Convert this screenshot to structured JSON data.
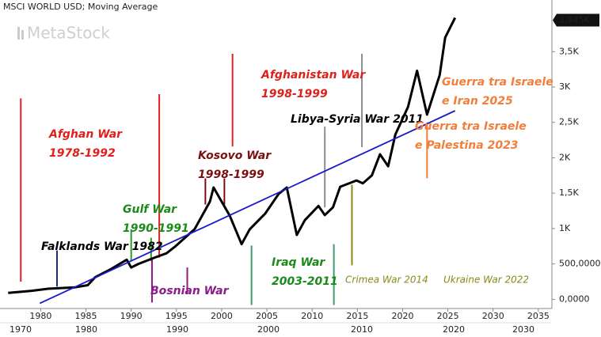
{
  "chart_data": {
    "type": "line",
    "title": "MSCI WORLD USD; Moving Average",
    "watermark": "MetaStock",
    "xlim": [
      1975.5,
      2036.5
    ],
    "ylim": [
      -130,
      4230
    ],
    "xticks": [
      1980,
      1985,
      1990,
      1995,
      2000,
      2005,
      2010,
      2015,
      2020,
      2025,
      2030,
      2035
    ],
    "x_period_labels": [
      "1970",
      "1980",
      "1990",
      "2000",
      "2010",
      "2020",
      "2030"
    ],
    "yticks": [
      {
        "value": 0,
        "label": "0,0000"
      },
      {
        "value": 500,
        "label": "500,0000"
      },
      {
        "value": 1000,
        "label": "1K"
      },
      {
        "value": 1500,
        "label": "1,5K"
      },
      {
        "value": 2000,
        "label": "2K"
      },
      {
        "value": 2500,
        "label": "2,5K"
      },
      {
        "value": 3000,
        "label": "3K"
      },
      {
        "value": 3500,
        "label": "3,5K"
      }
    ],
    "series": [
      {
        "color": "#000000",
        "x": [
          1976.4,
          1979.0,
          1980.8,
          1983.8,
          1985.2,
          1986.0,
          1987.8,
          1989.5,
          1990.0,
          1990.8,
          1992.6,
          1993.9,
          1994.8,
          1997.0,
          1998.7,
          1999.1,
          2000.9,
          2002.2,
          2003.1,
          2004.8,
          2006.3,
          2007.2,
          2008.3,
          2009.2,
          2010.7,
          2011.4,
          2012.3,
          2013.1,
          2014.9,
          2015.6,
          2016.6,
          2017.5,
          2018.4,
          2019.2,
          2020.6,
          2021.6,
          2022.7,
          2024.1,
          2024.7,
          2025.8
        ],
        "values": [
          90,
          120,
          150,
          170,
          200,
          310,
          430,
          560,
          450,
          500,
          590,
          650,
          740,
          990,
          1380,
          1580,
          1180,
          780,
          990,
          1210,
          1490,
          1580,
          910,
          1120,
          1320,
          1190,
          1300,
          1590,
          1680,
          1640,
          1750,
          2050,
          1880,
          2330,
          2720,
          3230,
          2610,
          3170,
          3700,
          3980
        ],
        "last_value": {
          "value": 3945,
          "label": "3,945K"
        }
      },
      {
        "color": "#1a1ac8",
        "x": [
          1979.9,
          2025.8
        ],
        "values": [
          -56,
          2665
        ]
      }
    ],
    "events": [
      {
        "x": 1977.8,
        "y": [
          2840,
          250
        ],
        "color": "#e0201c"
      },
      {
        "x": 1981.8,
        "y": [
          690,
          180
        ],
        "color": "#1a2a80"
      },
      {
        "x": 1990.0,
        "y": [
          990,
          540
        ],
        "color": "#2a9a2a"
      },
      {
        "x": 1992.2,
        "y": [
          870,
          540
        ],
        "color": "#2a9a2a"
      },
      {
        "x": 1993.1,
        "y": [
          2900,
          590
        ],
        "color": "#e0201c"
      },
      {
        "x": 1992.3,
        "y": [
          590,
          -45
        ],
        "color": "#8b1a8b"
      },
      {
        "x": 1996.2,
        "y": [
          450,
          90
        ],
        "color": "#8b1a8b"
      },
      {
        "x": 1998.2,
        "y": [
          1710,
          1340
        ],
        "color": "#7a1010"
      },
      {
        "x": 2000.3,
        "y": [
          1710,
          1340
        ],
        "color": "#7a1010"
      },
      {
        "x": 2001.2,
        "y": [
          3470,
          2160
        ],
        "color": "#e0201c"
      },
      {
        "x": 2003.3,
        "y": [
          760,
          -80
        ],
        "color": "#3a9e6e"
      },
      {
        "x": 2012.4,
        "y": [
          780,
          -80
        ],
        "color": "#3a9e6e"
      },
      {
        "x": 2011.4,
        "y": [
          2440,
          1300
        ],
        "color": "#8c8c8c"
      },
      {
        "x": 2015.5,
        "y": [
          3470,
          2150
        ],
        "color": "#8c8c8c"
      },
      {
        "x": 2014.4,
        "y": [
          1620,
          480
        ],
        "color": "#8a8a1a"
      },
      {
        "x": 2022.7,
        "y": [
          2500,
          1710
        ],
        "color": "#f07f3c"
      }
    ],
    "annotations": [
      {
        "lines": [
          "Afghan War",
          "1978-1992"
        ],
        "color": "#e0201c"
      },
      {
        "lines": [
          "Falklands War 1982"
        ],
        "color": "#000000"
      },
      {
        "lines": [
          "Gulf War",
          "1990-1991"
        ],
        "color": "#1a8a1a"
      },
      {
        "lines": [
          "Bosnian War"
        ],
        "color": "#8b1a8b"
      },
      {
        "lines": [
          "Kosovo War",
          "1998-1999"
        ],
        "color": "#7a1010"
      },
      {
        "lines": [
          "Afghanistan War",
          "1998-1999"
        ],
        "color": "#e0201c"
      },
      {
        "lines": [
          "Iraq War",
          "2003-2011"
        ],
        "color": "#1a8a1a"
      },
      {
        "lines": [
          "Libya-Syria War 2011"
        ],
        "color": "#000000"
      },
      {
        "lines": [
          "Crimea War 2014"
        ],
        "color": "#8a8a1a"
      },
      {
        "lines": [
          "Ukraine War 2022"
        ],
        "color": "#8a8a1a"
      },
      {
        "lines": [
          "Guerra tra Israele",
          "e Iran 2025"
        ],
        "color": "#f07f3c"
      },
      {
        "lines": [
          "Guerra tra Israele",
          "e Palestina 2023"
        ],
        "color": "#f07f3c"
      }
    ]
  }
}
